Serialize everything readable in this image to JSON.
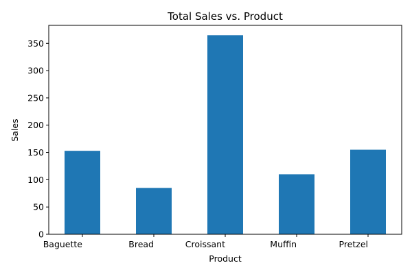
{
  "chart_data": {
    "type": "bar",
    "title": "Total Sales vs. Product",
    "xlabel": "Product",
    "ylabel": "Sales",
    "categories": [
      "Baguette",
      "Bread",
      "Croissant",
      "Muffin",
      "Pretzel"
    ],
    "values": [
      153,
      85,
      365,
      110,
      155
    ],
    "ylim": [
      0,
      383
    ],
    "yticks": [
      0,
      50,
      100,
      150,
      200,
      250,
      300,
      350
    ],
    "grid": false,
    "bar_color": "#1f77b4"
  }
}
